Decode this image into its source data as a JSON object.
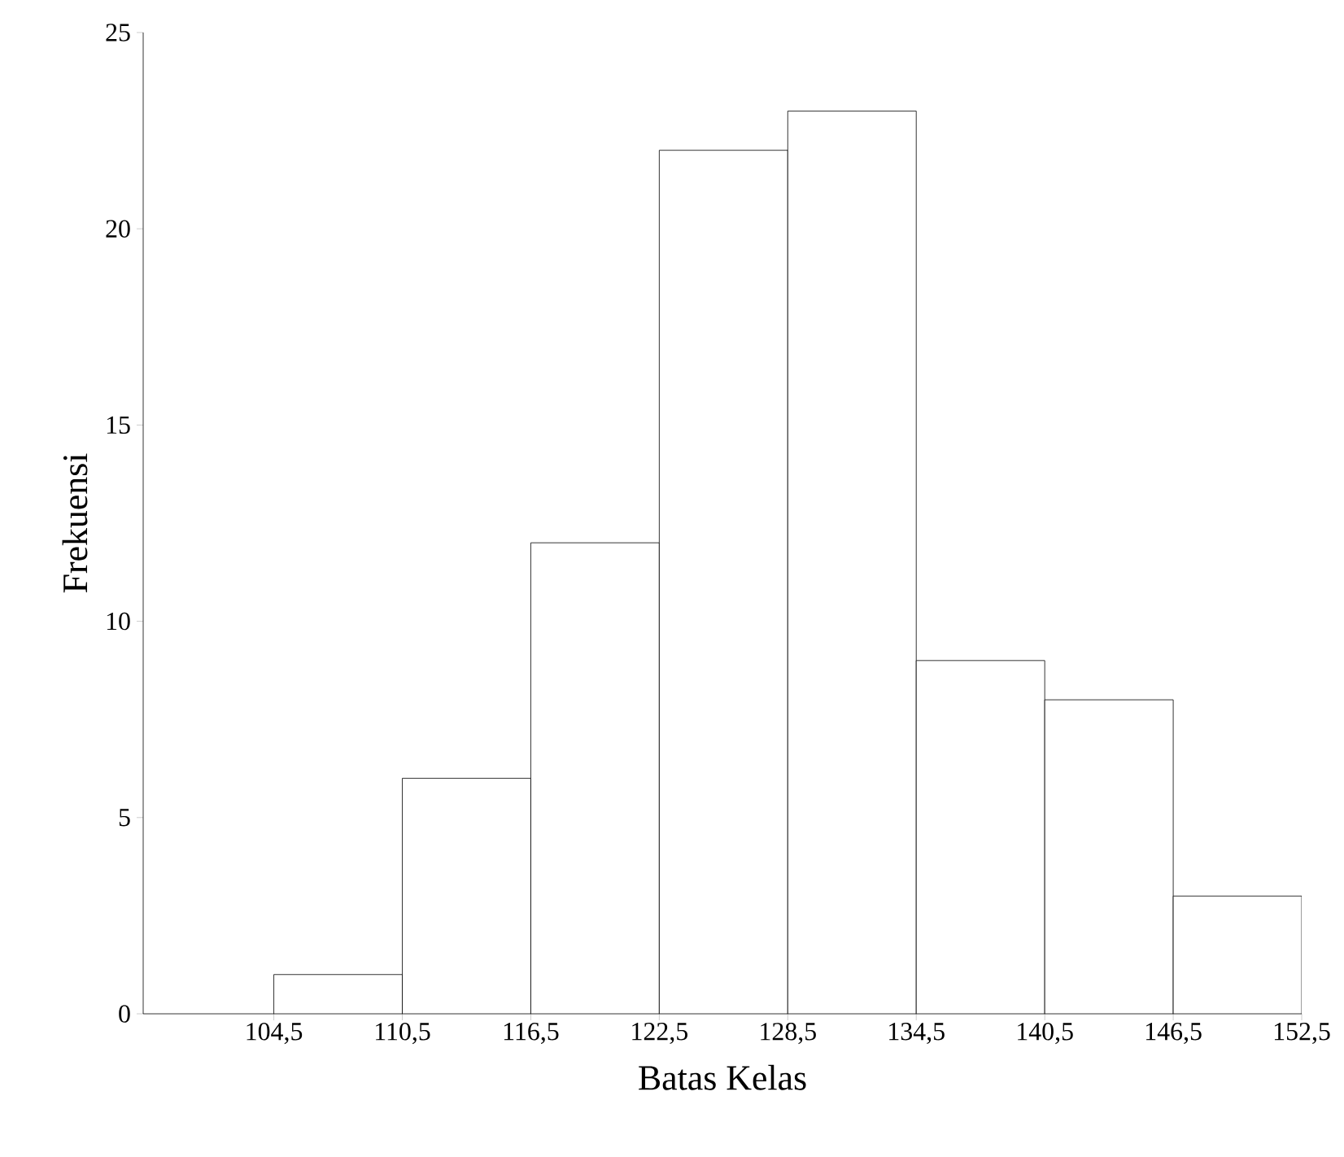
{
  "chart_data": {
    "type": "histogram",
    "xlabel": "Batas Kelas",
    "ylabel": "Frekuensi",
    "bins": [
      104.5,
      110.5,
      116.5,
      122.5,
      128.5,
      134.5,
      140.5,
      146.5,
      152.5
    ],
    "values": [
      1,
      6,
      12,
      22,
      23,
      9,
      8,
      3
    ],
    "color": "#ffffff",
    "xlim": [
      98.4,
      152.5
    ],
    "ylim": [
      0,
      25
    ],
    "xticks": [
      {
        "value": 104.5,
        "label": "104,5"
      },
      {
        "value": 110.5,
        "label": "110,5"
      },
      {
        "value": 116.5,
        "label": "116,5"
      },
      {
        "value": 122.5,
        "label": "122,5"
      },
      {
        "value": 128.5,
        "label": "128,5"
      },
      {
        "value": 134.5,
        "label": "134,5"
      },
      {
        "value": 140.5,
        "label": "140,5"
      },
      {
        "value": 146.5,
        "label": "146,5"
      },
      {
        "value": 152.5,
        "label": "152,5"
      }
    ],
    "yticks": [
      0,
      5,
      10,
      15,
      20,
      25
    ],
    "grid": false
  }
}
